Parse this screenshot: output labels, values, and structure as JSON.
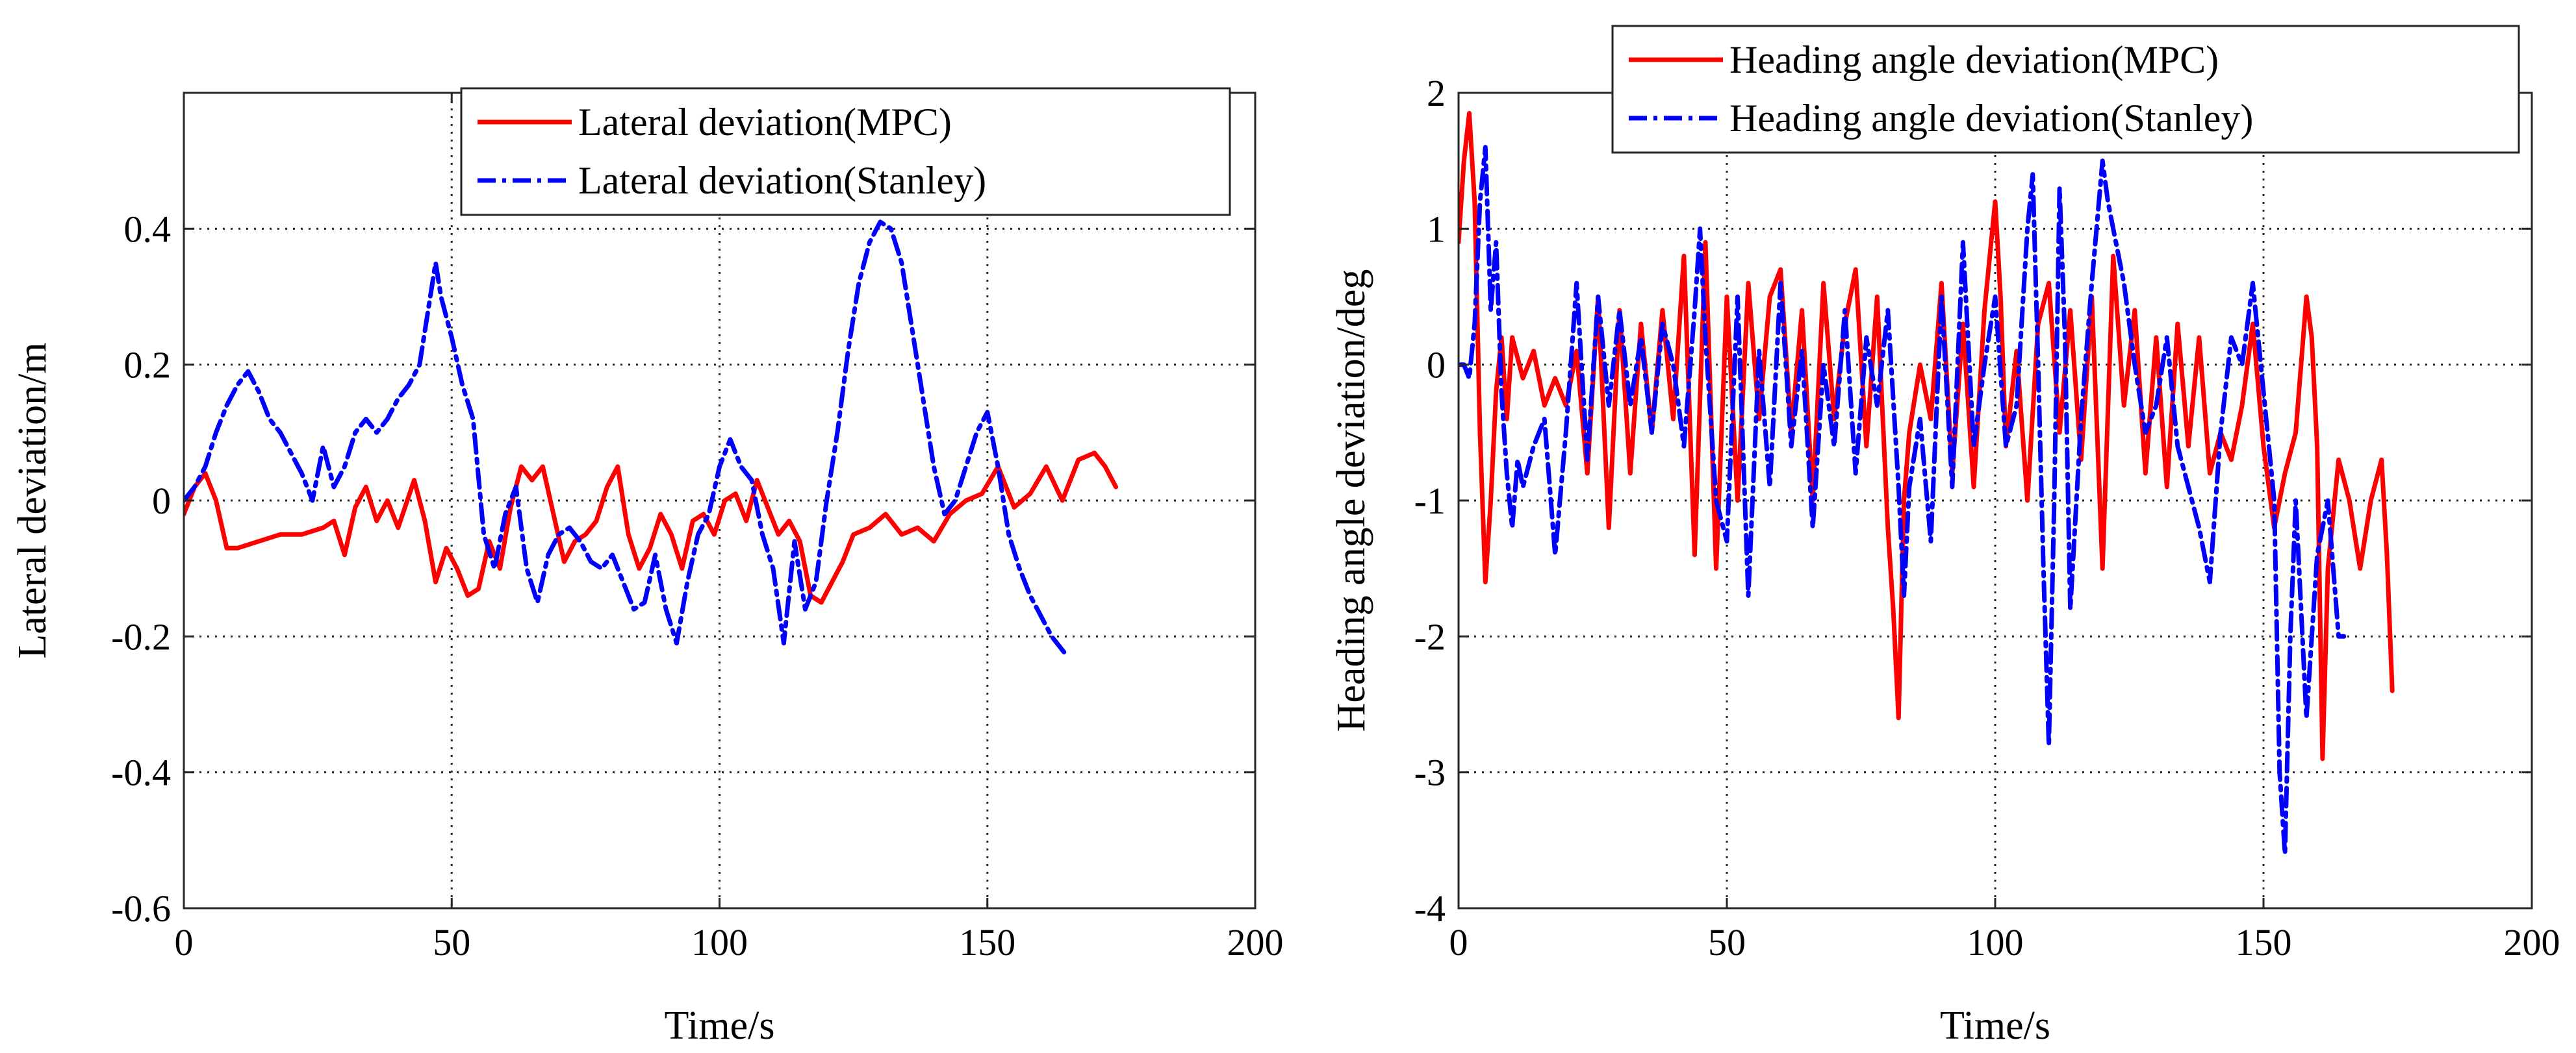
{
  "chart_data": [
    {
      "type": "line",
      "title": "",
      "xlabel": "Time/s",
      "ylabel": "Lateral deviation/m",
      "xlim": [
        0,
        200
      ],
      "ylim": [
        -0.6,
        0.6
      ],
      "xticks": [
        0,
        50,
        100,
        150,
        200
      ],
      "yticks": [
        -0.6,
        -0.4,
        -0.2,
        0,
        0.2,
        0.4
      ],
      "xtick_labels": [
        "0",
        "50",
        "100",
        "150",
        "200"
      ],
      "ytick_labels": [
        "-0.6",
        "-0.4",
        "-0.2",
        "0",
        "0.2",
        "0.4"
      ],
      "grid": true,
      "legend_position": "top-right",
      "series": [
        {
          "name": "Lateral deviation(MPC)",
          "color": "#ff0000",
          "style": "solid",
          "x": [
            0,
            2,
            4,
            6,
            8,
            10,
            14,
            18,
            22,
            26,
            28,
            30,
            32,
            34,
            36,
            38,
            40,
            43,
            45,
            47,
            49,
            51,
            53,
            55,
            57,
            59,
            61,
            63,
            65,
            67,
            69,
            71,
            73,
            75,
            77,
            79,
            81,
            83,
            85,
            87,
            89,
            91,
            93,
            95,
            97,
            99,
            101,
            103,
            105,
            107,
            109,
            111,
            113,
            115,
            117,
            119,
            121,
            123,
            125,
            128,
            131,
            134,
            137,
            140,
            143,
            146,
            149,
            152,
            155,
            158,
            161,
            164,
            167,
            170,
            172,
            174
          ],
          "y": [
            -0.02,
            0.02,
            0.04,
            0.0,
            -0.07,
            -0.07,
            -0.06,
            -0.05,
            -0.05,
            -0.04,
            -0.03,
            -0.08,
            -0.01,
            0.02,
            -0.03,
            0.0,
            -0.04,
            0.03,
            -0.03,
            -0.12,
            -0.07,
            -0.1,
            -0.14,
            -0.13,
            -0.06,
            -0.1,
            -0.01,
            0.05,
            0.03,
            0.05,
            -0.02,
            -0.09,
            -0.06,
            -0.05,
            -0.03,
            0.02,
            0.05,
            -0.05,
            -0.1,
            -0.07,
            -0.02,
            -0.05,
            -0.1,
            -0.03,
            -0.02,
            -0.05,
            0.0,
            0.01,
            -0.03,
            0.03,
            -0.01,
            -0.05,
            -0.03,
            -0.06,
            -0.14,
            -0.15,
            -0.12,
            -0.09,
            -0.05,
            -0.04,
            -0.02,
            -0.05,
            -0.04,
            -0.06,
            -0.02,
            0.0,
            0.01,
            0.05,
            -0.01,
            0.01,
            0.05,
            0.0,
            0.06,
            0.07,
            0.05,
            0.02
          ]
        },
        {
          "name": "Lateral deviation(Stanley)",
          "color": "#0000ff",
          "style": "dashdot",
          "x": [
            0,
            2,
            4,
            6,
            8,
            10,
            12,
            14,
            16,
            18,
            20,
            22,
            24,
            26,
            28,
            30,
            32,
            34,
            36,
            38,
            40,
            42,
            44,
            46,
            47,
            48,
            50,
            52,
            54,
            56,
            58,
            60,
            62,
            64,
            66,
            68,
            70,
            72,
            74,
            76,
            78,
            80,
            82,
            84,
            86,
            88,
            90,
            92,
            94,
            96,
            98,
            100,
            102,
            104,
            106,
            108,
            110,
            112,
            114,
            116,
            118,
            120,
            122,
            124,
            126,
            128,
            130,
            132,
            134,
            136,
            138,
            140,
            142,
            144,
            146,
            148,
            150,
            152,
            154,
            156,
            158,
            160,
            162,
            164,
            165
          ],
          "y": [
            0.0,
            0.02,
            0.05,
            0.1,
            0.14,
            0.17,
            0.19,
            0.16,
            0.12,
            0.1,
            0.07,
            0.04,
            0.0,
            0.08,
            0.02,
            0.05,
            0.1,
            0.12,
            0.1,
            0.12,
            0.15,
            0.17,
            0.2,
            0.3,
            0.35,
            0.3,
            0.24,
            0.17,
            0.12,
            -0.05,
            -0.1,
            -0.02,
            0.02,
            -0.1,
            -0.15,
            -0.08,
            -0.05,
            -0.04,
            -0.06,
            -0.09,
            -0.1,
            -0.08,
            -0.12,
            -0.16,
            -0.15,
            -0.08,
            -0.16,
            -0.21,
            -0.12,
            -0.05,
            -0.02,
            0.05,
            0.09,
            0.05,
            0.03,
            -0.05,
            -0.1,
            -0.21,
            -0.06,
            -0.16,
            -0.12,
            0.0,
            0.1,
            0.22,
            0.32,
            0.38,
            0.41,
            0.4,
            0.35,
            0.25,
            0.15,
            0.05,
            -0.02,
            0.0,
            0.05,
            0.1,
            0.13,
            0.05,
            -0.05,
            -0.1,
            -0.14,
            -0.17,
            -0.2,
            -0.22,
            -0.23
          ]
        }
      ]
    },
    {
      "type": "line",
      "title": "",
      "xlabel": "Time/s",
      "ylabel": "Heading angle deviation/deg",
      "xlim": [
        0,
        200
      ],
      "ylim": [
        -4,
        2
      ],
      "xticks": [
        0,
        50,
        100,
        150,
        200
      ],
      "yticks": [
        -4,
        -3,
        -2,
        -1,
        0,
        1,
        2
      ],
      "xtick_labels": [
        "0",
        "50",
        "100",
        "150",
        "200"
      ],
      "ytick_labels": [
        "-4",
        "-3",
        "-2",
        "-1",
        "0",
        "1",
        "2"
      ],
      "grid": true,
      "legend_position": "top-right",
      "series": [
        {
          "name": "Heading angle deviation(MPC)",
          "color": "#ff0000",
          "style": "solid",
          "x": [
            0,
            1,
            2,
            3,
            4,
            5,
            6,
            7,
            8,
            9,
            10,
            12,
            14,
            16,
            18,
            20,
            22,
            24,
            26,
            28,
            30,
            32,
            34,
            36,
            38,
            40,
            42,
            44,
            46,
            48,
            50,
            52,
            54,
            56,
            58,
            60,
            62,
            64,
            66,
            68,
            70,
            72,
            74,
            76,
            78,
            80,
            81,
            82,
            83,
            84,
            86,
            88,
            90,
            92,
            94,
            96,
            98,
            100,
            101,
            102,
            104,
            106,
            108,
            110,
            112,
            114,
            116,
            118,
            120,
            122,
            124,
            126,
            128,
            130,
            132,
            134,
            136,
            138,
            140,
            142,
            144,
            146,
            148,
            150,
            152,
            154,
            156,
            158,
            159,
            160,
            161,
            162,
            164,
            166,
            168,
            170,
            172,
            173,
            174
          ],
          "y": [
            0.9,
            1.5,
            1.85,
            1.2,
            -0.5,
            -1.6,
            -1.0,
            -0.2,
            0.2,
            -0.4,
            0.2,
            -0.1,
            0.1,
            -0.3,
            -0.1,
            -0.3,
            0.1,
            -0.8,
            0.5,
            -1.2,
            0.4,
            -0.8,
            0.3,
            -0.5,
            0.4,
            -0.4,
            0.8,
            -1.4,
            0.9,
            -1.5,
            0.5,
            -1.0,
            0.6,
            -0.4,
            0.5,
            0.7,
            -0.5,
            0.4,
            -1.0,
            0.6,
            -0.4,
            0.3,
            0.7,
            -0.6,
            0.5,
            -1.2,
            -1.8,
            -2.6,
            -1.0,
            -0.5,
            0.0,
            -0.4,
            0.6,
            -0.8,
            0.3,
            -0.9,
            0.4,
            1.2,
            0.5,
            -0.6,
            0.1,
            -1.0,
            0.3,
            0.6,
            -0.5,
            0.4,
            -0.7,
            0.5,
            -1.5,
            0.8,
            -0.3,
            0.4,
            -0.8,
            0.2,
            -0.9,
            0.3,
            -0.6,
            0.2,
            -0.8,
            -0.5,
            -0.7,
            -0.3,
            0.3,
            -0.6,
            -1.2,
            -0.8,
            -0.5,
            0.5,
            0.2,
            -0.6,
            -2.9,
            -1.5,
            -0.7,
            -1.0,
            -1.5,
            -1.0,
            -0.7,
            -1.4,
            -2.4
          ]
        },
        {
          "name": "Heading angle deviation(Stanley)",
          "color": "#0000ff",
          "style": "dashdot",
          "x": [
            0,
            1,
            2,
            3,
            4,
            5,
            6,
            7,
            8,
            9,
            10,
            11,
            12,
            14,
            16,
            18,
            20,
            22,
            24,
            26,
            28,
            30,
            32,
            34,
            36,
            38,
            40,
            42,
            44,
            45,
            46,
            48,
            50,
            52,
            54,
            56,
            58,
            60,
            62,
            64,
            66,
            68,
            70,
            72,
            74,
            76,
            78,
            80,
            82,
            83,
            84,
            86,
            88,
            90,
            92,
            94,
            96,
            98,
            100,
            102,
            104,
            106,
            107,
            108,
            109,
            110,
            111,
            112,
            113,
            114,
            116,
            118,
            120,
            121,
            122,
            124,
            126,
            128,
            130,
            132,
            134,
            136,
            138,
            140,
            142,
            144,
            146,
            148,
            150,
            151,
            152,
            153,
            154,
            155,
            156,
            158,
            160,
            162,
            164,
            165
          ],
          "y": [
            0.0,
            0.0,
            -0.1,
            0.3,
            1.2,
            1.6,
            0.4,
            0.9,
            -0.2,
            -0.8,
            -1.2,
            -0.7,
            -0.9,
            -0.6,
            -0.4,
            -1.4,
            -0.5,
            0.6,
            -0.7,
            0.5,
            -0.3,
            0.4,
            -0.3,
            0.2,
            -0.5,
            0.3,
            0.0,
            -0.6,
            0.4,
            1.0,
            0.2,
            -1.0,
            -1.3,
            0.5,
            -1.7,
            0.1,
            -0.9,
            0.6,
            -0.6,
            0.1,
            -1.2,
            0.0,
            -0.6,
            0.4,
            -0.8,
            0.2,
            -0.3,
            0.4,
            -0.9,
            -1.7,
            -0.9,
            -0.4,
            -1.3,
            0.5,
            -0.9,
            0.9,
            -0.6,
            0.0,
            0.5,
            -0.6,
            -0.3,
            1.0,
            1.4,
            0.0,
            -1.5,
            -2.8,
            -1.0,
            1.3,
            0.2,
            -1.8,
            -0.4,
            0.6,
            1.5,
            1.2,
            1.0,
            0.6,
            0.0,
            -0.5,
            -0.3,
            0.2,
            -0.6,
            -0.9,
            -1.2,
            -1.6,
            -0.5,
            0.2,
            0.0,
            0.6,
            -0.2,
            -0.6,
            -1.0,
            -3.0,
            -3.6,
            -2.0,
            -1.0,
            -2.6,
            -1.4,
            -1.0,
            -2.0,
            -2.0
          ]
        }
      ]
    }
  ]
}
